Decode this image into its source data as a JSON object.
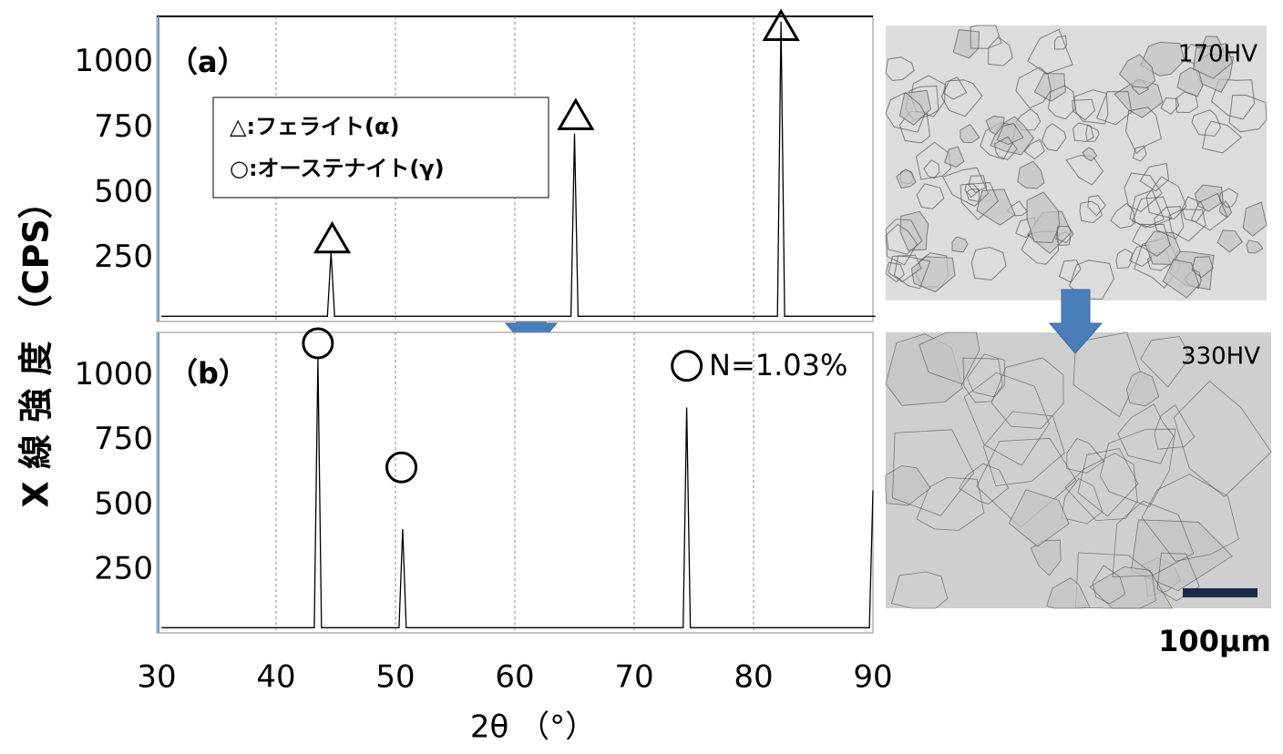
{
  "chart_data": [
    {
      "type": "line",
      "panel_label": "（a）",
      "y_label": "X 線 強 度 （CPS）",
      "xlim": [
        30,
        90
      ],
      "ylim": [
        0,
        1170
      ],
      "yticks": [
        250,
        500,
        750,
        1000
      ],
      "grid": true,
      "series": [
        {
          "color": "#000000",
          "x": [
            30.4,
            44.3,
            44.6,
            44.9,
            64.7,
            65.0,
            65.3,
            82.0,
            82.3,
            82.6,
            90.2
          ],
          "values": [
            20,
            20,
            264,
            20,
            20,
            720,
            20,
            20,
            1150,
            20,
            20
          ]
        }
      ],
      "markers": [
        {
          "x": 44.7,
          "y": 315,
          "shape": "triangle"
        },
        {
          "x": 65.1,
          "y": 788,
          "shape": "triangle"
        },
        {
          "x": 82.3,
          "y": 1130,
          "shape": "triangle"
        }
      ],
      "legend": [
        "△:フェライト(α)",
        "○:オーステナイト(γ)"
      ]
    },
    {
      "type": "line",
      "panel_label": "（b）",
      "x_label": "2θ （°）",
      "annotation": "N=1.03%",
      "xlim": [
        30,
        90
      ],
      "ylim": [
        0,
        1160
      ],
      "yticks": [
        250,
        500,
        750,
        1000
      ],
      "xticks": [
        30,
        40,
        50,
        60,
        70,
        80,
        90
      ],
      "grid": true,
      "series": [
        {
          "color": "#000000",
          "x": [
            30.4,
            43.2,
            43.5,
            43.8,
            50.3,
            50.6,
            50.9,
            74.1,
            74.4,
            74.7,
            89.7,
            90.0
          ],
          "values": [
            20,
            20,
            1060,
            20,
            20,
            400,
            20,
            20,
            870,
            20,
            20,
            550
          ]
        }
      ],
      "markers": [
        {
          "x": 43.5,
          "y": 1118,
          "shape": "circle"
        },
        {
          "x": 50.5,
          "y": 639,
          "shape": "circle"
        },
        {
          "x": 74.4,
          "y": 1031,
          "shape": "circle"
        }
      ]
    }
  ],
  "micrographs": [
    {
      "label": "170HV"
    },
    {
      "label": "330HV"
    }
  ],
  "scale_bar": "100μm"
}
